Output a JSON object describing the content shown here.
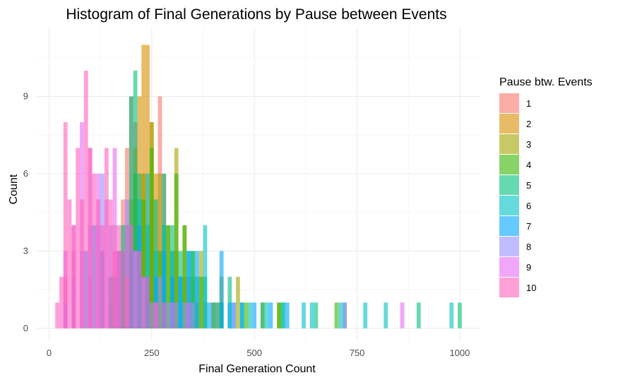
{
  "chart_data": {
    "type": "bar",
    "title": "Histogram of Final Generations by Pause between Events",
    "xlabel": "Final Generation Count",
    "ylabel": "Count",
    "xlim": [
      -30,
      1050
    ],
    "ylim": [
      -0.5,
      11.7
    ],
    "x_ticks": [
      0,
      250,
      500,
      750,
      1000
    ],
    "y_ticks": [
      0,
      3,
      6,
      9
    ],
    "bin_width": 10,
    "bar_opacity": 0.6,
    "grid": true,
    "legend": {
      "title": "Pause btw. Events",
      "position": "right"
    },
    "series": [
      {
        "name": "1",
        "color": "#F8766D",
        "bins": [
          [
            40,
            2
          ],
          [
            60,
            3
          ],
          [
            100,
            2
          ],
          [
            130,
            3
          ],
          [
            160,
            4
          ],
          [
            180,
            5
          ],
          [
            190,
            7
          ],
          [
            200,
            9
          ],
          [
            210,
            8
          ],
          [
            230,
            6
          ],
          [
            250,
            5
          ],
          [
            270,
            9
          ],
          [
            280,
            6
          ],
          [
            310,
            3
          ],
          [
            340,
            2
          ],
          [
            380,
            1
          ],
          [
            410,
            1
          ]
        ]
      },
      {
        "name": "2",
        "color": "#D89000",
        "bins": [
          [
            150,
            2
          ],
          [
            180,
            3
          ],
          [
            200,
            5
          ],
          [
            210,
            7
          ],
          [
            220,
            9
          ],
          [
            230,
            11
          ],
          [
            240,
            11
          ],
          [
            250,
            8
          ],
          [
            260,
            6
          ],
          [
            280,
            4
          ],
          [
            300,
            3
          ],
          [
            330,
            2
          ],
          [
            360,
            1
          ],
          [
            400,
            1
          ]
        ]
      },
      {
        "name": "3",
        "color": "#A3A500",
        "bins": [
          [
            170,
            2
          ],
          [
            190,
            4
          ],
          [
            210,
            5
          ],
          [
            230,
            6
          ],
          [
            250,
            8
          ],
          [
            270,
            6
          ],
          [
            290,
            4
          ],
          [
            310,
            7
          ],
          [
            330,
            4
          ],
          [
            350,
            2
          ],
          [
            370,
            3
          ],
          [
            400,
            1
          ],
          [
            420,
            2
          ],
          [
            460,
            2
          ],
          [
            520,
            1
          ],
          [
            560,
            1
          ]
        ]
      },
      {
        "name": "4",
        "color": "#39B600",
        "bins": [
          [
            150,
            1
          ],
          [
            170,
            3
          ],
          [
            190,
            4
          ],
          [
            210,
            6
          ],
          [
            230,
            5
          ],
          [
            250,
            7
          ],
          [
            270,
            3
          ],
          [
            290,
            4
          ],
          [
            310,
            6
          ],
          [
            330,
            4
          ],
          [
            350,
            3
          ],
          [
            370,
            2
          ],
          [
            420,
            1
          ],
          [
            480,
            1
          ],
          [
            560,
            1
          ],
          [
            700,
            1
          ]
        ]
      },
      {
        "name": "5",
        "color": "#00BF7D",
        "bins": [
          [
            160,
            2
          ],
          [
            180,
            4
          ],
          [
            200,
            9
          ],
          [
            210,
            10
          ],
          [
            220,
            6
          ],
          [
            240,
            4
          ],
          [
            260,
            5
          ],
          [
            280,
            6
          ],
          [
            300,
            4
          ],
          [
            320,
            3
          ],
          [
            350,
            3
          ],
          [
            380,
            2
          ],
          [
            410,
            1
          ],
          [
            440,
            2
          ],
          [
            470,
            1
          ],
          [
            520,
            1
          ],
          [
            570,
            1
          ],
          [
            650,
            1
          ],
          [
            720,
            1
          ],
          [
            900,
            1
          ],
          [
            1000,
            1
          ]
        ]
      },
      {
        "name": "6",
        "color": "#00BFC4",
        "bins": [
          [
            180,
            3
          ],
          [
            200,
            4
          ],
          [
            220,
            5
          ],
          [
            240,
            6
          ],
          [
            260,
            3
          ],
          [
            280,
            4
          ],
          [
            300,
            3
          ],
          [
            320,
            2
          ],
          [
            340,
            3
          ],
          [
            360,
            2
          ],
          [
            380,
            4
          ],
          [
            400,
            1
          ],
          [
            420,
            1
          ],
          [
            450,
            1
          ],
          [
            490,
            1
          ],
          [
            530,
            1
          ],
          [
            570,
            1
          ],
          [
            620,
            1
          ],
          [
            640,
            1
          ],
          [
            710,
            1
          ],
          [
            770,
            1
          ],
          [
            820,
            1
          ],
          [
            980,
            1
          ]
        ]
      },
      {
        "name": "7",
        "color": "#00A5FF",
        "bins": [
          [
            90,
            3
          ],
          [
            110,
            4
          ],
          [
            130,
            3
          ],
          [
            150,
            2
          ],
          [
            170,
            3
          ],
          [
            200,
            3
          ],
          [
            220,
            4
          ],
          [
            240,
            2
          ],
          [
            260,
            2
          ],
          [
            280,
            3
          ],
          [
            300,
            2
          ],
          [
            320,
            2
          ],
          [
            340,
            3
          ],
          [
            360,
            3
          ],
          [
            390,
            1
          ],
          [
            420,
            3
          ],
          [
            440,
            1
          ],
          [
            470,
            1
          ],
          [
            500,
            1
          ],
          [
            540,
            1
          ],
          [
            580,
            1
          ]
        ]
      },
      {
        "name": "8",
        "color": "#9590FF",
        "bins": [
          [
            40,
            1
          ],
          [
            60,
            2
          ],
          [
            80,
            3
          ],
          [
            100,
            4
          ],
          [
            120,
            4
          ],
          [
            130,
            6
          ],
          [
            150,
            4
          ],
          [
            170,
            3
          ],
          [
            190,
            5
          ],
          [
            210,
            3
          ],
          [
            230,
            2
          ],
          [
            250,
            1
          ],
          [
            270,
            2
          ],
          [
            290,
            1
          ],
          [
            310,
            1
          ],
          [
            330,
            1
          ],
          [
            350,
            1
          ],
          [
            450,
            1
          ],
          [
            720,
            1
          ]
        ]
      },
      {
        "name": "9",
        "color": "#E76BF3",
        "bins": [
          [
            40,
            3
          ],
          [
            60,
            4
          ],
          [
            80,
            8
          ],
          [
            100,
            7
          ],
          [
            120,
            6
          ],
          [
            140,
            5
          ],
          [
            160,
            7
          ],
          [
            170,
            3
          ],
          [
            190,
            4
          ],
          [
            210,
            3
          ],
          [
            230,
            2
          ],
          [
            260,
            1
          ],
          [
            300,
            1
          ],
          [
            340,
            1
          ],
          [
            860,
            1
          ]
        ]
      },
      {
        "name": "10",
        "color": "#FF62BC",
        "bins": [
          [
            20,
            1
          ],
          [
            30,
            2
          ],
          [
            40,
            8
          ],
          [
            50,
            5
          ],
          [
            60,
            4
          ],
          [
            70,
            7
          ],
          [
            80,
            5
          ],
          [
            90,
            10
          ],
          [
            100,
            7
          ],
          [
            110,
            6
          ],
          [
            120,
            5
          ],
          [
            130,
            4
          ],
          [
            140,
            7
          ],
          [
            150,
            5
          ],
          [
            160,
            3
          ],
          [
            170,
            4
          ],
          [
            180,
            3
          ],
          [
            190,
            2
          ],
          [
            200,
            4
          ],
          [
            220,
            3
          ],
          [
            240,
            2
          ],
          [
            260,
            1
          ],
          [
            280,
            1
          ]
        ]
      }
    ]
  }
}
